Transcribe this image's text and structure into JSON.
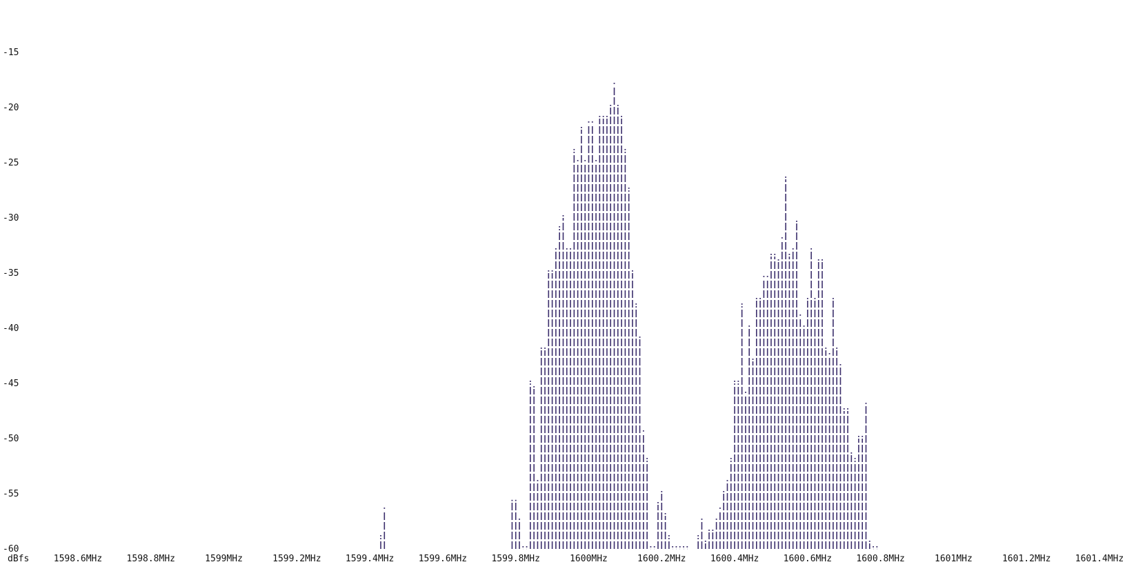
{
  "chart_data": {
    "type": "bar",
    "style": "ascii spectrum plot",
    "y_unit_label": "dBfs",
    "y_ticks": [
      "-15",
      "-20",
      "-25",
      "-30",
      "-35",
      "-40",
      "-45",
      "-50",
      "-55",
      "-60"
    ],
    "y_tick_values": [
      -15,
      -20,
      -25,
      -30,
      -35,
      -40,
      -45,
      -50,
      -55,
      -60
    ],
    "ylim": [
      -60,
      -13
    ],
    "x_ticks": [
      "1598.6MHz",
      "1598.8MHz",
      "1599MHz",
      "1599.2MHz",
      "1599.4MHz",
      "1599.6MHz",
      "1599.8MHz",
      "1600MHz",
      "1600.2MHz",
      "1600.4MHz",
      "1600.6MHz",
      "1600.8MHz",
      "1601MHz",
      "1601.2MHz",
      "1601.4MHz"
    ],
    "x_tick_values": [
      1598.6,
      1598.8,
      1599.0,
      1599.2,
      1599.4,
      1599.6,
      1599.8,
      1600.0,
      1600.2,
      1600.4,
      1600.6,
      1600.8,
      1601.0,
      1601.2,
      1601.4
    ],
    "xlim": [
      1598.47,
      1601.55
    ],
    "bar_color": "#3a2d6b",
    "series": [
      {
        "freq_mhz": [
          1599.43,
          1599.44,
          1599.79,
          1599.8,
          1599.81,
          1599.82,
          1599.83,
          1599.84,
          1599.85,
          1599.86,
          1599.87,
          1599.88,
          1599.89,
          1599.9,
          1599.91,
          1599.92,
          1599.93,
          1599.94,
          1599.95,
          1599.96,
          1599.97,
          1599.98,
          1599.99,
          1600.0,
          1600.01,
          1600.02,
          1600.03,
          1600.04,
          1600.05,
          1600.06,
          1600.07,
          1600.08,
          1600.09,
          1600.1,
          1600.11,
          1600.12,
          1600.13,
          1600.14,
          1600.15,
          1600.16,
          1600.17,
          1600.18,
          1600.19,
          1600.2,
          1600.21,
          1600.22,
          1600.23,
          1600.24,
          1600.25,
          1600.26,
          1600.27,
          1600.3,
          1600.31,
          1600.32,
          1600.33,
          1600.34,
          1600.35,
          1600.36,
          1600.37,
          1600.38,
          1600.39,
          1600.4,
          1600.41,
          1600.42,
          1600.43,
          1600.44,
          1600.45,
          1600.46,
          1600.47,
          1600.48,
          1600.49,
          1600.5,
          1600.51,
          1600.52,
          1600.53,
          1600.54,
          1600.55,
          1600.56,
          1600.57,
          1600.58,
          1600.59,
          1600.6,
          1600.61,
          1600.62,
          1600.63,
          1600.64,
          1600.65,
          1600.66,
          1600.67,
          1600.68,
          1600.69,
          1600.7,
          1600.71,
          1600.72,
          1600.73,
          1600.74,
          1600.75,
          1600.76,
          1600.77,
          1600.78,
          1600.79
        ],
        "dbfs": [
          -59.0,
          -56.5,
          -55.8,
          -55.8,
          -57.5,
          -60.0,
          -60.0,
          -45.0,
          -45.5,
          -54.0,
          -42.0,
          -42.0,
          -35.0,
          -35.0,
          -33.0,
          -31.0,
          -30.0,
          -33.0,
          -33.0,
          -24.0,
          -25.0,
          -22.0,
          -25.0,
          -21.5,
          -21.5,
          -25.0,
          -21.0,
          -21.0,
          -21.0,
          -20.0,
          -18.0,
          -20.0,
          -21.0,
          -24.0,
          -27.5,
          -35.0,
          -38.0,
          -41.0,
          -49.5,
          -52.0,
          -60.0,
          -60.0,
          -56.0,
          -55.0,
          -57.0,
          -59.0,
          -60.0,
          -60.0,
          -60.0,
          -60.0,
          -60.0,
          -59.0,
          -57.5,
          -59.5,
          -58.5,
          -58.5,
          -57.5,
          -56.5,
          -55.0,
          -54.0,
          -52.0,
          -45.0,
          -45.0,
          -38.0,
          -46.0,
          -40.0,
          -43.0,
          -37.5,
          -37.5,
          -35.5,
          -35.5,
          -33.5,
          -33.5,
          -34.0,
          -32.0,
          -26.5,
          -33.5,
          -33.0,
          -30.5,
          -39.0,
          -40.0,
          -37.5,
          -33.0,
          -37.5,
          -34.0,
          -34.0,
          -42.0,
          -42.5,
          -37.5,
          -42.0,
          -43.5,
          -47.5,
          -47.5,
          -51.5,
          -52.0,
          -50.0,
          -50.0,
          -47.0,
          -59.5,
          -60.0,
          -60.0
        ]
      }
    ]
  }
}
